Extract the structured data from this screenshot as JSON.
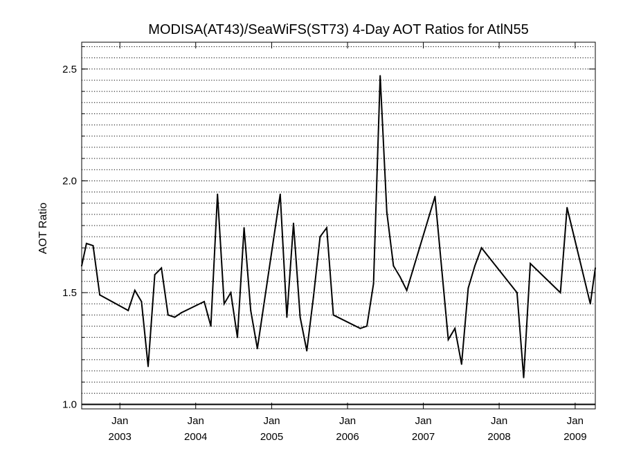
{
  "chart_data": {
    "type": "line",
    "title": "MODISA(AT43)/SeaWiFS(ST73) 4-Day AOT Ratios for AtlN55",
    "xlabel": "",
    "ylabel": "AOT Ratio",
    "ylim": [
      0.98,
      2.62
    ],
    "xlim": [
      "2002-07-01",
      "2009-04-08"
    ],
    "yticks": [
      {
        "value": 1.0,
        "label": "1.0"
      },
      {
        "value": 1.5,
        "label": "1.5"
      },
      {
        "value": 2.0,
        "label": "2.0"
      },
      {
        "value": 2.5,
        "label": "2.5"
      }
    ],
    "xticks": [
      {
        "date": "2003-01-01",
        "month": "Jan",
        "year": "2003"
      },
      {
        "date": "2004-01-01",
        "month": "Jan",
        "year": "2004"
      },
      {
        "date": "2005-01-01",
        "month": "Jan",
        "year": "2005"
      },
      {
        "date": "2006-01-01",
        "month": "Jan",
        "year": "2006"
      },
      {
        "date": "2007-01-01",
        "month": "Jan",
        "year": "2007"
      },
      {
        "date": "2008-01-01",
        "month": "Jan",
        "year": "2008"
      },
      {
        "date": "2009-01-01",
        "month": "Jan",
        "year": "2009"
      }
    ],
    "grid": true,
    "grid_style": "dotted horizontal lines every 0.05",
    "reference_line": 1.0,
    "series": [
      {
        "color": "#000000",
        "x": [
          "2002-07-01",
          "2002-07-24",
          "2002-08-25",
          "2002-09-26",
          "2003-02-10",
          "2003-03-14",
          "2003-04-15",
          "2003-05-17",
          "2003-06-18",
          "2003-07-20",
          "2003-08-21",
          "2003-09-22",
          "2003-10-24",
          "2004-02-11",
          "2004-03-14",
          "2004-04-15",
          "2004-05-17",
          "2004-06-18",
          "2004-07-20",
          "2004-08-21",
          "2004-09-22",
          "2004-10-24",
          "2005-02-11",
          "2005-03-15",
          "2005-04-16",
          "2005-05-18",
          "2005-06-19",
          "2005-07-21",
          "2005-08-22",
          "2005-09-23",
          "2005-10-25",
          "2006-03-03",
          "2006-04-04",
          "2006-05-06",
          "2006-06-07",
          "2006-07-09",
          "2006-08-10",
          "2006-09-11",
          "2006-10-13",
          "2007-02-26",
          "2007-03-30",
          "2007-05-01",
          "2007-06-02",
          "2007-07-04",
          "2007-08-05",
          "2007-09-06",
          "2007-10-08",
          "2008-03-27",
          "2008-04-28",
          "2008-05-30",
          "2008-10-22",
          "2008-11-23",
          "2009-03-15",
          "2009-04-08"
        ],
        "y": [
          1.62,
          1.72,
          1.71,
          1.49,
          1.42,
          1.51,
          1.46,
          1.17,
          1.58,
          1.61,
          1.4,
          1.39,
          1.41,
          1.46,
          1.35,
          1.94,
          1.45,
          1.5,
          1.3,
          1.79,
          1.42,
          1.25,
          1.94,
          1.39,
          1.81,
          1.39,
          1.24,
          1.48,
          1.75,
          1.79,
          1.4,
          1.34,
          1.35,
          1.54,
          2.47,
          1.86,
          1.62,
          1.57,
          1.51,
          1.93,
          1.61,
          1.29,
          1.34,
          1.18,
          1.52,
          1.62,
          1.7,
          1.5,
          1.12,
          1.63,
          1.5,
          1.88,
          1.45,
          1.61
        ]
      }
    ]
  }
}
